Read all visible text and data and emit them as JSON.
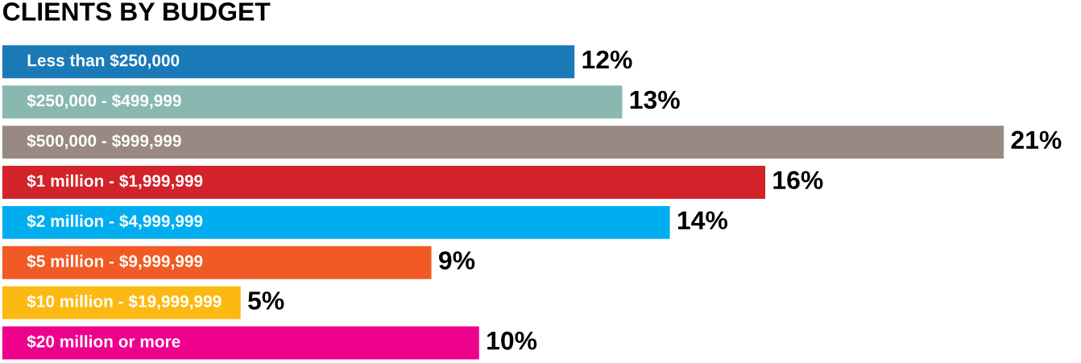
{
  "chart_data": {
    "type": "bar",
    "orientation": "horizontal",
    "title": "CLIENTS BY BUDGET",
    "categories": [
      "Less than $250,000",
      "$250,000 - $499,999",
      "$500,000 - $999,999",
      "$1 million - $1,999,999",
      "$2 million - $4,999,999",
      "$5 million - $9,999,999",
      "$10 million - $19,999,999",
      "$20 million or more"
    ],
    "values": [
      12,
      13,
      21,
      16,
      14,
      9,
      5,
      10
    ],
    "value_labels": [
      "12%",
      "13%",
      "21%",
      "16%",
      "14%",
      "9%",
      "5%",
      "10%"
    ],
    "colors": [
      "#1a7ab8",
      "#8ab8b0",
      "#988a82",
      "#d2232a",
      "#00aeef",
      "#f15a24",
      "#fdb913",
      "#ec008c"
    ],
    "legend": false
  }
}
